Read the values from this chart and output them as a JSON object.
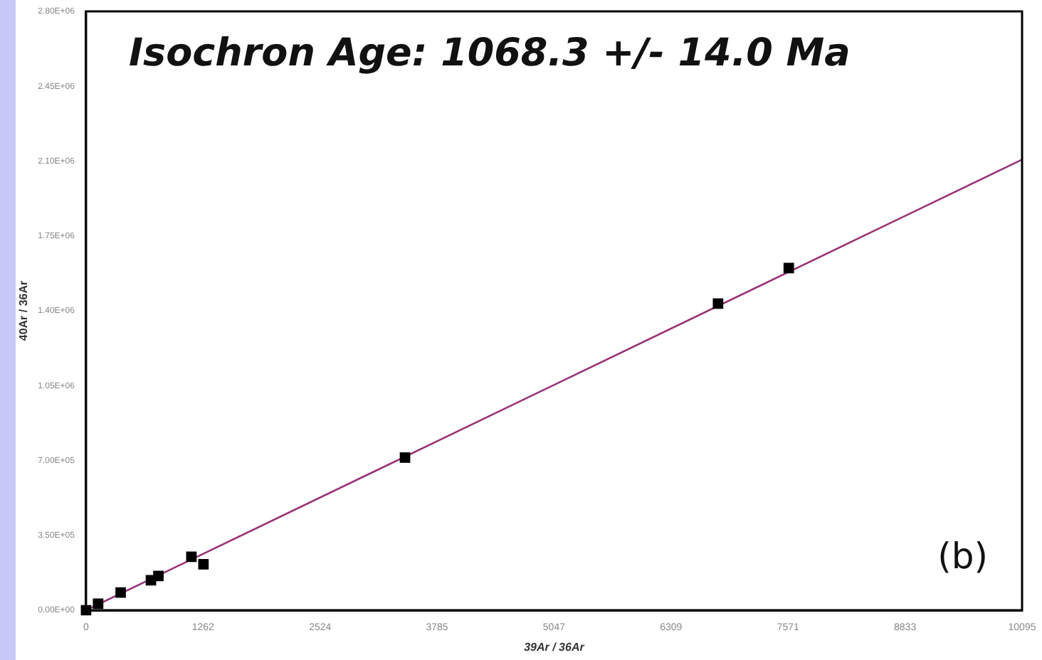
{
  "chart_data": {
    "type": "scatter",
    "title": "Isochron Age: 1068.3 +/- 14.0 Ma",
    "xlabel": "39Ar / 36Ar",
    "ylabel": "40Ar / 36Ar",
    "annotations": [
      "(b)"
    ],
    "series": [
      {
        "marker": "square",
        "color": "#000000",
        "x": [
          0,
          130,
          373,
          700,
          760,
          780,
          1136,
          1266,
          3440,
          6816,
          7579
        ],
        "values": [
          0,
          30000,
          83000,
          140000,
          null,
          160000,
          250000,
          215000,
          714000,
          1434000,
          1600000
        ]
      },
      {
        "type": "line",
        "color": "#993377",
        "x": [
          0,
          10095
        ],
        "values": [
          0,
          2107000
        ]
      }
    ],
    "grid": false,
    "legend": false,
    "xlim": [
      0,
      10095
    ],
    "xticks": [
      0,
      1262,
      2524,
      3785,
      5047,
      6309,
      7571,
      8833,
      10095
    ],
    "ylim": [
      0,
      2800000
    ],
    "yticks": [
      {
        "value": 0,
        "label": "0.00E+00"
      },
      {
        "value": 350000,
        "label": "3.50E+05"
      },
      {
        "value": 700000,
        "label": "7.00E+05"
      },
      {
        "value": 1050000,
        "label": "1.05E+06"
      },
      {
        "value": 1400000,
        "label": "1.40E+06"
      },
      {
        "value": 1750000,
        "label": "1.75E+06"
      },
      {
        "value": 2100000,
        "label": "2.10E+06"
      },
      {
        "value": 2450000,
        "label": "2.45E+06"
      },
      {
        "value": 2800000,
        "label": "2.80E+06"
      }
    ]
  }
}
